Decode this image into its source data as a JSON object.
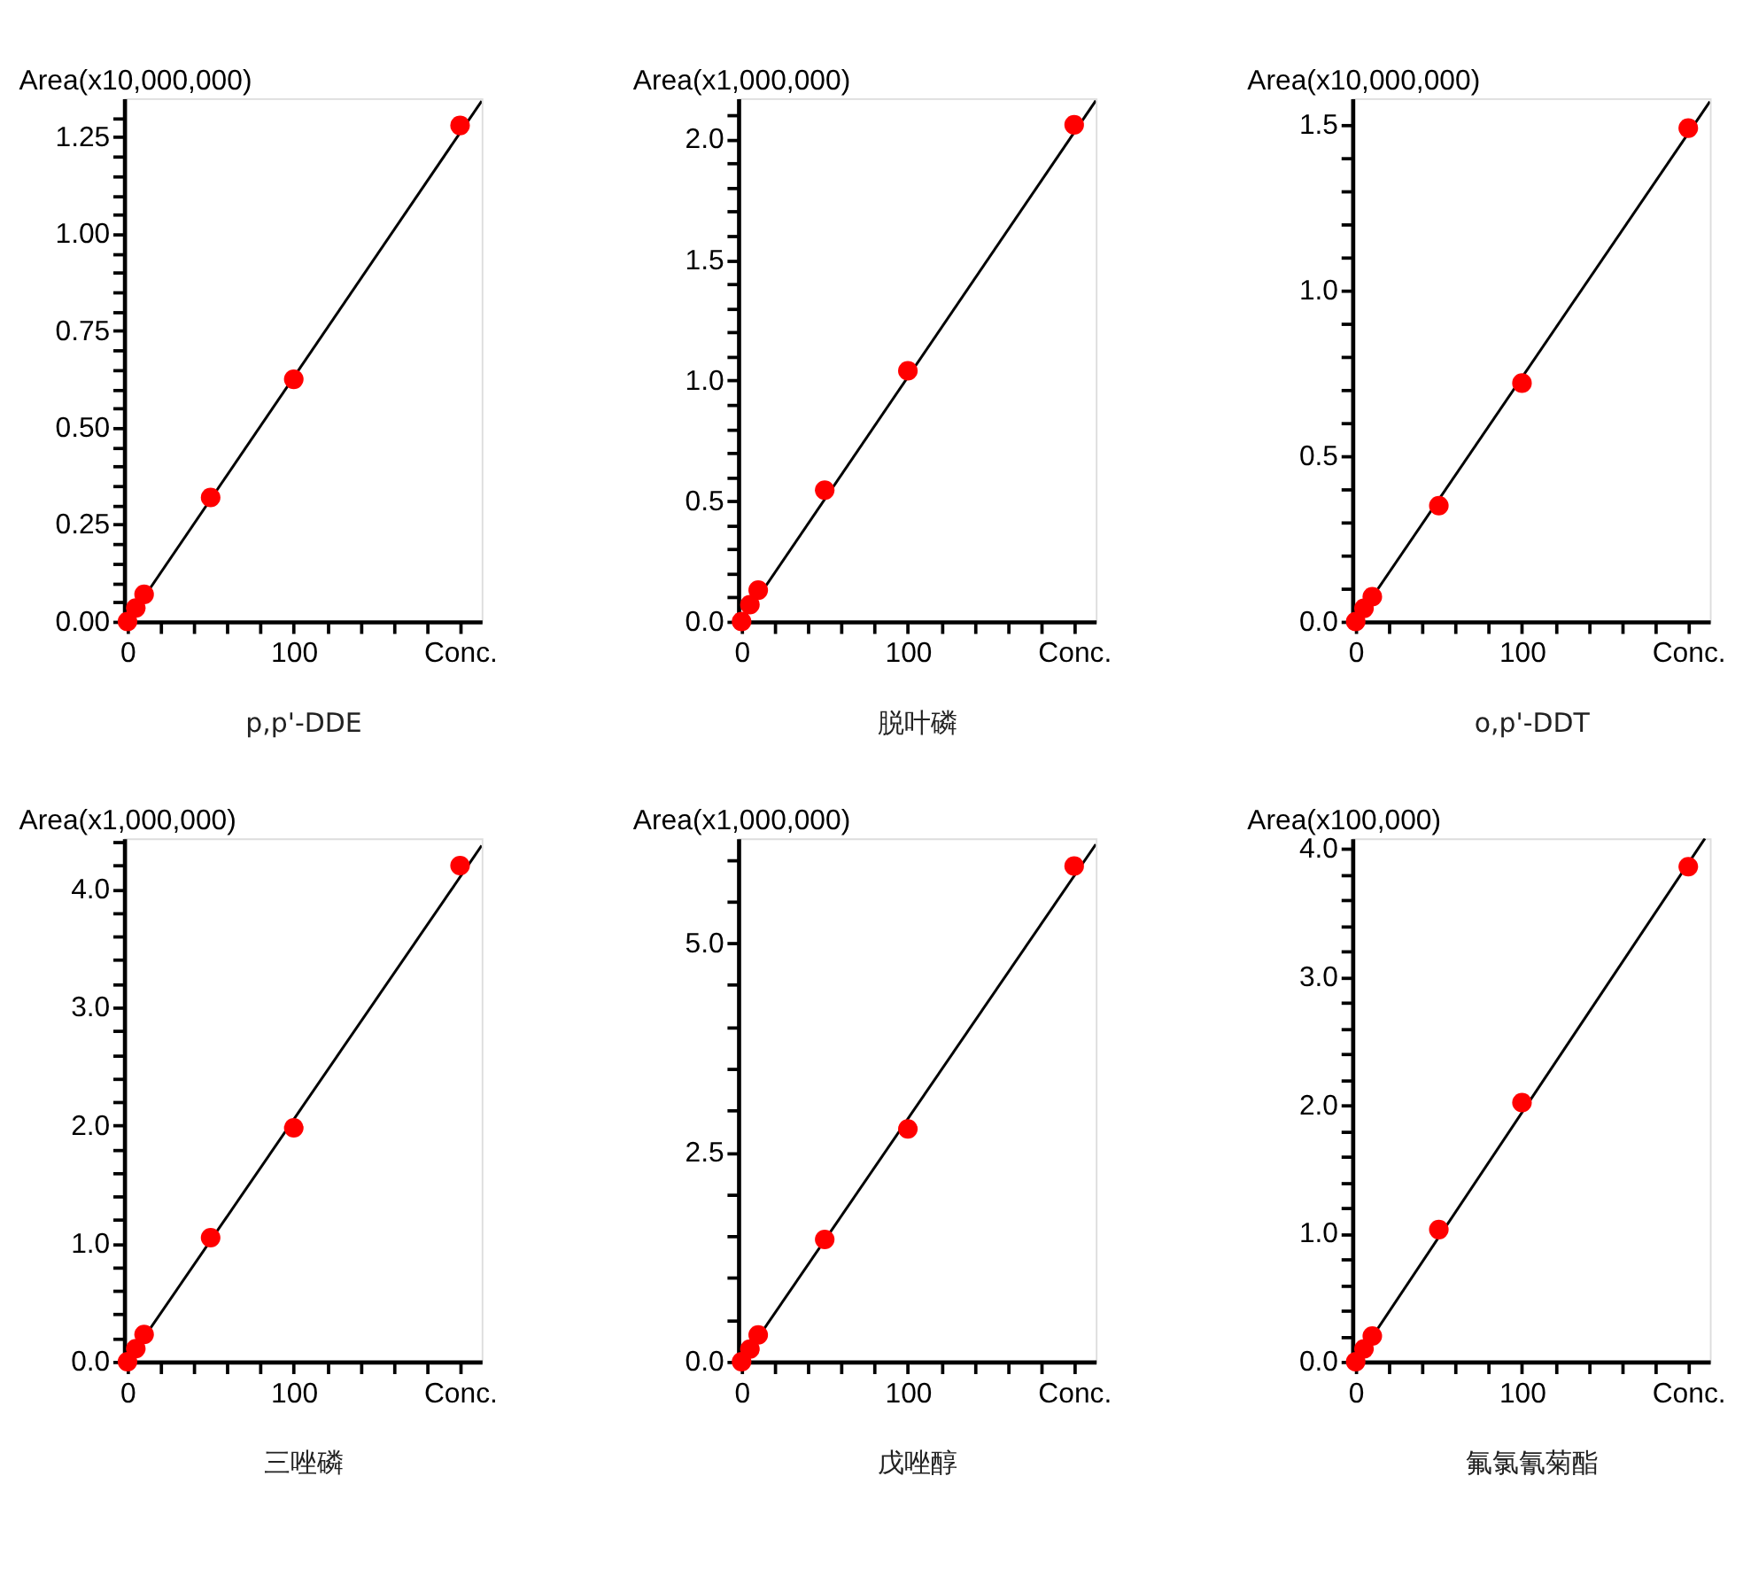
{
  "chart_data": [
    {
      "type": "scatter",
      "xlabel": "p,p'-DDE",
      "ylabel": "Area(x10,000,000)",
      "grid": false,
      "marker": "circle",
      "xlim": [
        -2,
        213
      ],
      "xticks": [
        {
          "value": 0,
          "label": "0"
        },
        {
          "value": 20,
          "label": null
        },
        {
          "value": 40,
          "label": null
        },
        {
          "value": 60,
          "label": null
        },
        {
          "value": 80,
          "label": null
        },
        {
          "value": 100,
          "label": "100"
        },
        {
          "value": 120,
          "label": null
        },
        {
          "value": 140,
          "label": null
        },
        {
          "value": 160,
          "label": null
        },
        {
          "value": 180,
          "label": null
        },
        {
          "value": 200,
          "label": "Conc."
        }
      ],
      "ylim": [
        0,
        1.35
      ],
      "yticks": [
        {
          "value": 0,
          "label": "0.00"
        },
        {
          "value": 0.05,
          "label": null
        },
        {
          "value": 0.1,
          "label": null
        },
        {
          "value": 0.15,
          "label": null
        },
        {
          "value": 0.2,
          "label": null
        },
        {
          "value": 0.25,
          "label": "0.25"
        },
        {
          "value": 0.3,
          "label": null
        },
        {
          "value": 0.35,
          "label": null
        },
        {
          "value": 0.4,
          "label": null
        },
        {
          "value": 0.45,
          "label": null
        },
        {
          "value": 0.5,
          "label": "0.50"
        },
        {
          "value": 0.55,
          "label": null
        },
        {
          "value": 0.6,
          "label": null
        },
        {
          "value": 0.65,
          "label": null
        },
        {
          "value": 0.7,
          "label": null
        },
        {
          "value": 0.75,
          "label": "0.75"
        },
        {
          "value": 0.8,
          "label": null
        },
        {
          "value": 0.85,
          "label": null
        },
        {
          "value": 0.9,
          "label": null
        },
        {
          "value": 0.95,
          "label": null
        },
        {
          "value": 1,
          "label": "1.00"
        },
        {
          "value": 1.05,
          "label": null
        },
        {
          "value": 1.1,
          "label": null
        },
        {
          "value": 1.15,
          "label": null
        },
        {
          "value": 1.2,
          "label": null
        },
        {
          "value": 1.25,
          "label": "1.25"
        },
        {
          "value": 1.3,
          "label": null
        }
      ],
      "series": [
        {
          "type": "scatter",
          "color": "#ff0000",
          "x": [
            0,
            5,
            10,
            50,
            100,
            200
          ],
          "values": [
            0,
            0.035,
            0.07,
            0.32,
            0.625,
            1.28
          ]
        },
        {
          "type": "line",
          "color": "#000000",
          "marker": "none",
          "x": [
            0,
            213
          ],
          "values": [
            0,
            1.343
          ]
        }
      ]
    },
    {
      "type": "scatter",
      "xlabel": "脱叶磷",
      "ylabel": "Area(x1,000,000)",
      "grid": false,
      "marker": "circle",
      "xlim": [
        -2,
        213
      ],
      "xticks": [
        {
          "value": 0,
          "label": "0"
        },
        {
          "value": 20,
          "label": null
        },
        {
          "value": 40,
          "label": null
        },
        {
          "value": 60,
          "label": null
        },
        {
          "value": 80,
          "label": null
        },
        {
          "value": 100,
          "label": "100"
        },
        {
          "value": 120,
          "label": null
        },
        {
          "value": 140,
          "label": null
        },
        {
          "value": 160,
          "label": null
        },
        {
          "value": 180,
          "label": null
        },
        {
          "value": 200,
          "label": "Conc."
        }
      ],
      "ylim": [
        0,
        2.17
      ],
      "yticks": [
        {
          "value": 0,
          "label": "0.0"
        },
        {
          "value": 0.1,
          "label": null
        },
        {
          "value": 0.2,
          "label": null
        },
        {
          "value": 0.3,
          "label": null
        },
        {
          "value": 0.4,
          "label": null
        },
        {
          "value": 0.5,
          "label": "0.5"
        },
        {
          "value": 0.6,
          "label": null
        },
        {
          "value": 0.7,
          "label": null
        },
        {
          "value": 0.8,
          "label": null
        },
        {
          "value": 0.9,
          "label": null
        },
        {
          "value": 1,
          "label": "1.0"
        },
        {
          "value": 1.1,
          "label": null
        },
        {
          "value": 1.2,
          "label": null
        },
        {
          "value": 1.3,
          "label": null
        },
        {
          "value": 1.4,
          "label": null
        },
        {
          "value": 1.5,
          "label": "1.5"
        },
        {
          "value": 1.6,
          "label": null
        },
        {
          "value": 1.7,
          "label": null
        },
        {
          "value": 1.8,
          "label": null
        },
        {
          "value": 1.9,
          "label": null
        },
        {
          "value": 2,
          "label": "2.0"
        },
        {
          "value": 2.1,
          "label": null
        }
      ],
      "series": [
        {
          "type": "scatter",
          "color": "#ff0000",
          "x": [
            0,
            5,
            10,
            50,
            100,
            200
          ],
          "values": [
            0,
            0.07,
            0.13,
            0.545,
            1.04,
            2.06
          ]
        },
        {
          "type": "line",
          "color": "#000000",
          "marker": "none",
          "x": [
            0,
            213
          ],
          "values": [
            0,
            2.16
          ]
        }
      ]
    },
    {
      "type": "scatter",
      "xlabel": "o,p'-DDT",
      "ylabel": "Area(x10,000,000)",
      "grid": false,
      "marker": "circle",
      "xlim": [
        -2,
        213
      ],
      "xticks": [
        {
          "value": 0,
          "label": "0"
        },
        {
          "value": 20,
          "label": null
        },
        {
          "value": 40,
          "label": null
        },
        {
          "value": 60,
          "label": null
        },
        {
          "value": 80,
          "label": null
        },
        {
          "value": 100,
          "label": "100"
        },
        {
          "value": 120,
          "label": null
        },
        {
          "value": 140,
          "label": null
        },
        {
          "value": 160,
          "label": null
        },
        {
          "value": 180,
          "label": null
        },
        {
          "value": 200,
          "label": "Conc."
        }
      ],
      "ylim": [
        0,
        1.58
      ],
      "yticks": [
        {
          "value": 0,
          "label": "0.0"
        },
        {
          "value": 0.1,
          "label": null
        },
        {
          "value": 0.2,
          "label": null
        },
        {
          "value": 0.3,
          "label": null
        },
        {
          "value": 0.4,
          "label": null
        },
        {
          "value": 0.5,
          "label": "0.5"
        },
        {
          "value": 0.6,
          "label": null
        },
        {
          "value": 0.7,
          "label": null
        },
        {
          "value": 0.8,
          "label": null
        },
        {
          "value": 0.9,
          "label": null
        },
        {
          "value": 1,
          "label": "1.0"
        },
        {
          "value": 1.1,
          "label": null
        },
        {
          "value": 1.2,
          "label": null
        },
        {
          "value": 1.3,
          "label": null
        },
        {
          "value": 1.4,
          "label": null
        },
        {
          "value": 1.5,
          "label": "1.5"
        }
      ],
      "series": [
        {
          "type": "scatter",
          "color": "#ff0000",
          "x": [
            0,
            5,
            10,
            50,
            100,
            200
          ],
          "values": [
            0,
            0.04,
            0.075,
            0.35,
            0.72,
            1.49
          ]
        },
        {
          "type": "line",
          "color": "#000000",
          "marker": "none",
          "x": [
            0,
            213
          ],
          "values": [
            0,
            1.57
          ]
        }
      ]
    },
    {
      "type": "scatter",
      "xlabel": "三唑磷",
      "ylabel": "Area(x1,000,000)",
      "grid": false,
      "marker": "circle",
      "xlim": [
        -2,
        213
      ],
      "xticks": [
        {
          "value": 0,
          "label": "0"
        },
        {
          "value": 20,
          "label": null
        },
        {
          "value": 40,
          "label": null
        },
        {
          "value": 60,
          "label": null
        },
        {
          "value": 80,
          "label": null
        },
        {
          "value": 100,
          "label": "100"
        },
        {
          "value": 120,
          "label": null
        },
        {
          "value": 140,
          "label": null
        },
        {
          "value": 160,
          "label": null
        },
        {
          "value": 180,
          "label": null
        },
        {
          "value": 200,
          "label": "Conc."
        }
      ],
      "ylim": [
        0,
        4.43
      ],
      "yticks": [
        {
          "value": 0,
          "label": "0.0"
        },
        {
          "value": 0.2,
          "label": null
        },
        {
          "value": 0.4,
          "label": null
        },
        {
          "value": 0.6,
          "label": null
        },
        {
          "value": 0.8,
          "label": null
        },
        {
          "value": 1,
          "label": "1.0"
        },
        {
          "value": 1.2,
          "label": null
        },
        {
          "value": 1.4,
          "label": null
        },
        {
          "value": 1.6,
          "label": null
        },
        {
          "value": 1.8,
          "label": null
        },
        {
          "value": 2,
          "label": "2.0"
        },
        {
          "value": 2.2,
          "label": null
        },
        {
          "value": 2.4,
          "label": null
        },
        {
          "value": 2.6,
          "label": null
        },
        {
          "value": 2.8,
          "label": null
        },
        {
          "value": 3,
          "label": "3.0"
        },
        {
          "value": 3.2,
          "label": null
        },
        {
          "value": 3.4,
          "label": null
        },
        {
          "value": 3.6,
          "label": null
        },
        {
          "value": 3.8,
          "label": null
        },
        {
          "value": 4,
          "label": "4.0"
        },
        {
          "value": 4.2,
          "label": null
        },
        {
          "value": 4.4,
          "label": null
        }
      ],
      "series": [
        {
          "type": "scatter",
          "color": "#ff0000",
          "x": [
            0,
            5,
            10,
            50,
            100,
            200
          ],
          "values": [
            0,
            0.11,
            0.23,
            1.05,
            1.98,
            4.2
          ]
        },
        {
          "type": "line",
          "color": "#000000",
          "marker": "none",
          "x": [
            0,
            213
          ],
          "values": [
            0,
            4.37
          ]
        }
      ]
    },
    {
      "type": "scatter",
      "xlabel": "戊唑醇",
      "ylabel": "Area(x1,000,000)",
      "grid": false,
      "marker": "circle",
      "xlim": [
        -2,
        213
      ],
      "xticks": [
        {
          "value": 0,
          "label": "0"
        },
        {
          "value": 20,
          "label": null
        },
        {
          "value": 40,
          "label": null
        },
        {
          "value": 60,
          "label": null
        },
        {
          "value": 80,
          "label": null
        },
        {
          "value": 100,
          "label": "100"
        },
        {
          "value": 120,
          "label": null
        },
        {
          "value": 140,
          "label": null
        },
        {
          "value": 160,
          "label": null
        },
        {
          "value": 180,
          "label": null
        },
        {
          "value": 200,
          "label": "Conc."
        }
      ],
      "ylim": [
        0,
        6.25
      ],
      "yticks": [
        {
          "value": 0,
          "label": "0.0"
        },
        {
          "value": 0.5,
          "label": null
        },
        {
          "value": 1,
          "label": null
        },
        {
          "value": 1.5,
          "label": null
        },
        {
          "value": 2,
          "label": null
        },
        {
          "value": 2.5,
          "label": "2.5"
        },
        {
          "value": 3,
          "label": null
        },
        {
          "value": 3.5,
          "label": null
        },
        {
          "value": 4,
          "label": null
        },
        {
          "value": 4.5,
          "label": null
        },
        {
          "value": 5,
          "label": "5.0"
        },
        {
          "value": 5.5,
          "label": null
        },
        {
          "value": 6,
          "label": null
        }
      ],
      "series": [
        {
          "type": "scatter",
          "color": "#ff0000",
          "x": [
            0,
            5,
            10,
            50,
            100,
            200
          ],
          "values": [
            0,
            0.15,
            0.32,
            1.46,
            2.78,
            5.92
          ]
        },
        {
          "type": "line",
          "color": "#000000",
          "marker": "none",
          "x": [
            0,
            213
          ],
          "values": [
            0,
            6.18
          ]
        }
      ]
    },
    {
      "type": "scatter",
      "xlabel": "氟氯氰菊酯",
      "ylabel": "Area(x100,000)",
      "grid": false,
      "marker": "circle",
      "xlim": [
        -2,
        213
      ],
      "xticks": [
        {
          "value": 0,
          "label": "0"
        },
        {
          "value": 20,
          "label": null
        },
        {
          "value": 40,
          "label": null
        },
        {
          "value": 60,
          "label": null
        },
        {
          "value": 80,
          "label": null
        },
        {
          "value": 100,
          "label": "100"
        },
        {
          "value": 120,
          "label": null
        },
        {
          "value": 140,
          "label": null
        },
        {
          "value": 160,
          "label": null
        },
        {
          "value": 180,
          "label": null
        },
        {
          "value": 200,
          "label": "Conc."
        }
      ],
      "ylim": [
        0,
        4.08
      ],
      "yticks": [
        {
          "value": 0,
          "label": "0.0"
        },
        {
          "value": 0.2,
          "label": null
        },
        {
          "value": 0.4,
          "label": null
        },
        {
          "value": 0.6,
          "label": null
        },
        {
          "value": 0.8,
          "label": null
        },
        {
          "value": 1,
          "label": "1.0"
        },
        {
          "value": 1.2,
          "label": null
        },
        {
          "value": 1.4,
          "label": null
        },
        {
          "value": 1.6,
          "label": null
        },
        {
          "value": 1.8,
          "label": null
        },
        {
          "value": 2,
          "label": "2.0"
        },
        {
          "value": 2.2,
          "label": null
        },
        {
          "value": 2.4,
          "label": null
        },
        {
          "value": 2.6,
          "label": null
        },
        {
          "value": 2.8,
          "label": null
        },
        {
          "value": 3,
          "label": "3.0"
        },
        {
          "value": 3.2,
          "label": null
        },
        {
          "value": 3.4,
          "label": null
        },
        {
          "value": 3.6,
          "label": null
        },
        {
          "value": 3.8,
          "label": null
        },
        {
          "value": 4,
          "label": "4.0"
        }
      ],
      "series": [
        {
          "type": "scatter",
          "color": "#ff0000",
          "x": [
            0,
            5,
            10,
            50,
            100,
            200
          ],
          "values": [
            0,
            0.1,
            0.2,
            1.03,
            2.02,
            3.86
          ]
        },
        {
          "type": "line",
          "color": "#000000",
          "marker": "none",
          "x": [
            0,
            210
          ],
          "values": [
            0,
            4.08
          ]
        }
      ]
    }
  ]
}
